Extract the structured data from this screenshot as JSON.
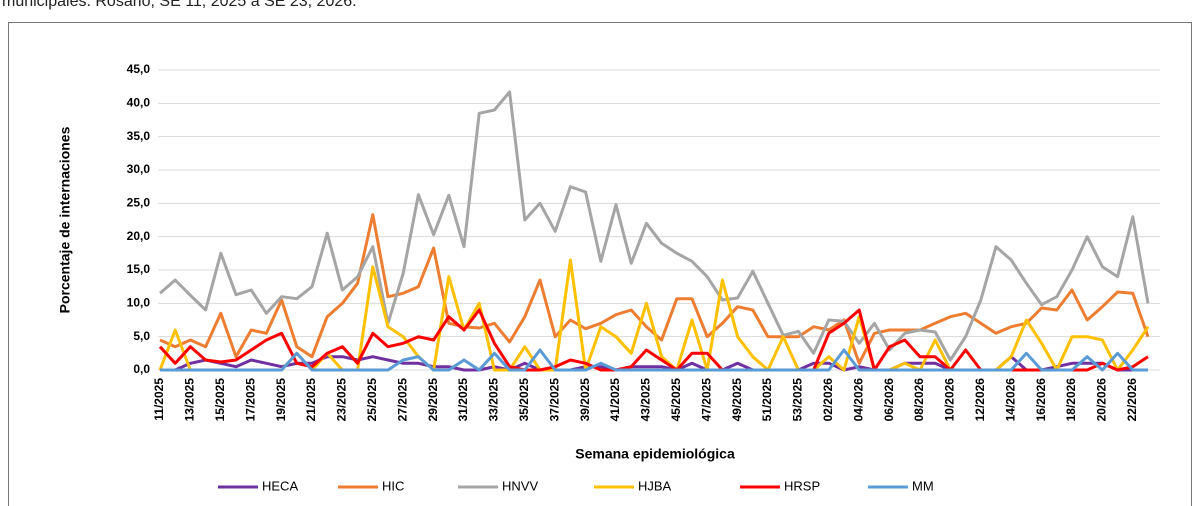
{
  "chart_data": {
    "type": "line",
    "title": "municipales. Rosario, SE 11, 2025 a SE 23, 2026.",
    "x_label": "Semana epidemiológica",
    "y_label": "Porcentaje de internaciones",
    "categories": [
      "11/2025",
      null,
      "13/2025",
      null,
      "15/2025",
      null,
      "17/2025",
      null,
      "19/2025",
      null,
      "21/2025",
      null,
      "23/2025",
      null,
      "25/2025",
      null,
      "27/2025",
      null,
      "29/2025",
      null,
      "31/2025",
      null,
      "33/2025",
      null,
      "35/2025",
      null,
      "37/2025",
      null,
      "39/2025",
      null,
      "41/2025",
      null,
      "43/2025",
      null,
      "45/2025",
      null,
      "47/2025",
      null,
      "49/2025",
      null,
      "51/2025",
      null,
      "53/2025",
      null,
      "02/2026",
      null,
      "04/2026",
      null,
      "06/2026",
      null,
      "08/2026",
      null,
      "10/2026",
      null,
      "12/2026",
      null,
      "14/2026",
      null,
      "16/2026",
      null,
      "18/2026",
      null,
      "20/2026",
      null,
      "22/2026",
      null
    ],
    "ylim": [
      0,
      45
    ],
    "yticks": [
      {
        "value": 0,
        "label": "0,0"
      },
      {
        "value": 5,
        "label": "5,0"
      },
      {
        "value": 10,
        "label": "10,0"
      },
      {
        "value": 15,
        "label": "15,0"
      },
      {
        "value": 20,
        "label": "20,0"
      },
      {
        "value": 25,
        "label": "25,0"
      },
      {
        "value": 30,
        "label": "30,0"
      },
      {
        "value": 35,
        "label": "35,0"
      },
      {
        "value": 40,
        "label": "40,0"
      },
      {
        "value": 45,
        "label": "45,0"
      }
    ],
    "grid": true,
    "legend": "bottom",
    "series": [
      {
        "name": "HECA",
        "color": "#7030a0",
        "values": [
          0,
          0,
          1,
          1.5,
          1,
          0.5,
          1.5,
          1,
          0.5,
          1,
          1,
          2,
          2,
          1.5,
          2,
          1.5,
          1,
          1,
          0.5,
          0.5,
          0,
          0,
          0.5,
          0,
          1,
          0,
          0,
          0,
          0.5,
          0.5,
          0,
          0.5,
          0.5,
          0.5,
          0,
          1,
          0,
          0,
          1,
          0,
          0,
          0,
          0,
          1,
          1,
          0,
          0.5,
          0,
          0,
          1,
          1,
          1,
          0,
          0,
          0,
          0,
          2,
          0,
          0,
          0.5,
          1,
          1,
          1,
          0,
          0,
          0
        ]
      },
      {
        "name": "HIC",
        "color": "#ed7d31",
        "values": [
          4.5,
          3.5,
          4.5,
          3.5,
          8.5,
          2,
          6,
          5.5,
          10.5,
          3.5,
          2,
          8,
          10,
          13,
          23.3,
          11,
          11.5,
          12.5,
          18.3,
          7,
          6.5,
          6.3,
          7,
          4.2,
          8,
          13.5,
          5,
          7.5,
          6.2,
          7,
          8.3,
          9,
          6.5,
          4.5,
          10.7,
          10.7,
          5,
          7,
          9.5,
          9,
          5,
          5,
          5,
          6.5,
          6,
          7.5,
          1,
          5.5,
          6,
          6,
          6,
          7,
          8,
          8.5,
          7,
          5.5,
          6.5,
          7,
          9.3,
          9,
          12,
          7.5,
          9.5,
          11.7,
          11.5,
          5
        ]
      },
      {
        "name": "HNVV",
        "color": "#a5a5a5",
        "values": [
          11.5,
          13.5,
          11.2,
          9,
          17.5,
          11.3,
          12,
          8.5,
          11,
          10.7,
          12.5,
          20.5,
          12,
          14,
          18.5,
          7,
          14.5,
          26.3,
          20.3,
          26.2,
          18.5,
          38.5,
          39,
          41.7,
          22.5,
          25,
          20.8,
          27.5,
          26.7,
          16.3,
          24.8,
          16,
          22,
          19,
          17.5,
          16.3,
          14,
          10.5,
          10.8,
          14.8,
          10,
          5.2,
          5.8,
          2.5,
          7.5,
          7.3,
          4,
          7,
          3,
          5.5,
          6,
          5.7,
          1.5,
          5,
          10.5,
          18.5,
          16.5,
          13,
          9.8,
          11,
          15,
          20,
          15.5,
          14,
          23,
          10
        ]
      },
      {
        "name": "HJBA",
        "color": "#ffc000",
        "values": [
          0,
          6,
          0,
          0,
          0,
          0,
          0,
          0,
          0,
          2.5,
          0,
          2.5,
          0,
          0,
          15.5,
          6.5,
          5,
          2,
          0,
          14,
          6,
          10,
          0,
          0,
          3.5,
          0,
          0,
          16.5,
          0,
          6.5,
          5,
          2.5,
          10,
          2,
          0,
          7.5,
          0,
          13.5,
          5,
          2,
          0,
          5,
          0,
          0,
          2,
          0,
          8,
          0,
          0,
          1,
          0,
          4.5,
          0,
          0,
          0,
          0,
          2,
          7.5,
          4,
          0,
          5,
          5,
          4.5,
          0,
          3,
          6.5
        ]
      },
      {
        "name": "HRSP",
        "color": "#ff0000",
        "values": [
          3.5,
          1,
          3.5,
          1.5,
          1.2,
          1.5,
          3,
          4.5,
          5.5,
          1,
          0.5,
          2.5,
          3.5,
          1,
          5.5,
          3.5,
          4,
          5,
          4.5,
          8,
          6,
          9,
          4,
          0.5,
          0,
          0,
          0.5,
          1.5,
          1,
          0,
          0,
          0.5,
          3,
          1.5,
          0,
          2.5,
          2.5,
          0,
          0,
          0,
          0,
          0,
          0,
          0,
          5.5,
          7,
          9,
          0,
          3.5,
          4.5,
          2,
          2,
          0,
          3,
          0,
          0,
          0,
          0,
          0,
          0,
          0,
          0,
          1,
          0,
          0.5,
          2
        ]
      },
      {
        "name": "MM",
        "color": "#5b9bd5",
        "values": [
          0,
          0,
          0,
          0,
          0,
          0,
          0,
          0,
          0,
          2.5,
          0,
          0,
          0,
          0,
          0,
          0,
          1.5,
          2,
          0,
          0,
          1.5,
          0,
          2.5,
          0,
          0,
          3,
          0,
          0,
          0,
          1,
          0,
          0,
          0,
          0,
          0,
          0,
          0,
          0,
          0,
          0,
          0,
          0,
          0,
          0,
          0,
          3,
          0,
          0,
          0,
          0,
          0,
          0,
          0,
          0,
          0,
          0,
          0,
          2.5,
          0,
          0,
          0,
          2,
          0,
          2.5,
          0,
          0
        ]
      }
    ]
  }
}
